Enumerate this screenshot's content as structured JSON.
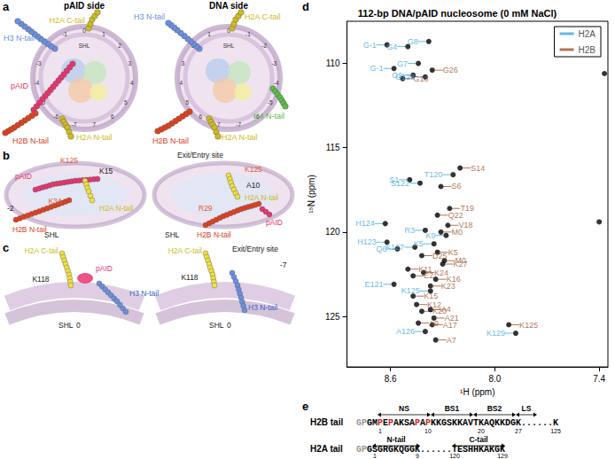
{
  "panel_letters": [
    "a",
    "b",
    "c",
    "d",
    "e"
  ],
  "a": {
    "views": [
      {
        "title": "pAID side",
        "shl_label": "SHL",
        "shl_numbers": [
          -7,
          -6,
          -5,
          -4,
          -3,
          -2,
          -1,
          0,
          1,
          2,
          3,
          4,
          5,
          6,
          7
        ],
        "tails": [
          {
            "text": "H3 N-tail",
            "color": "#6c8fe0"
          },
          {
            "text": "H2A C-tail",
            "color": "#cdbb22"
          },
          {
            "text": "pAID",
            "color": "#e8356e"
          },
          {
            "text": "H2B N-tail",
            "color": "#e0401e"
          },
          {
            "text": "H2A N-tail",
            "color": "#cdbb22"
          }
        ]
      },
      {
        "title": "DNA side",
        "shl_label": "SHL",
        "shl_numbers": [
          -7,
          -6,
          -5,
          -4,
          -3,
          -2,
          -1,
          0,
          1,
          2,
          3,
          4,
          5,
          6,
          7
        ],
        "tails": [
          {
            "text": "H3 N-tail",
            "color": "#6c8fe0"
          },
          {
            "text": "H2A C-tail",
            "color": "#cdbb22"
          },
          {
            "text": "H4 N-tail",
            "color": "#5dbb4a"
          },
          {
            "text": "H2B N-tail",
            "color": "#e0401e"
          },
          {
            "text": "H2A N-tail",
            "color": "#cdbb22"
          }
        ]
      }
    ]
  },
  "b": {
    "views": [
      {
        "labels": [
          {
            "text": "K125",
            "color": "#e06030"
          },
          {
            "text": "K15",
            "color": "#222222"
          },
          {
            "text": "pAID",
            "color": "#e8356e"
          },
          {
            "text": "K34",
            "color": "#e06030"
          },
          {
            "text": "H2A N-tail",
            "color": "#cdbb22"
          },
          {
            "text": "H2B N-tail",
            "color": "#e0401e"
          },
          {
            "number": -2,
            "color": "#222222"
          },
          {
            "text": "SHL",
            "color": "#222222"
          }
        ]
      },
      {
        "labels": [
          {
            "text": "Exit/Entry site",
            "color": "#222222"
          },
          {
            "text": "K125",
            "color": "#e06030"
          },
          {
            "text": "A10",
            "color": "#222222"
          },
          {
            "text": "H2A N-tail",
            "color": "#cdbb22"
          },
          {
            "text": "R29",
            "color": "#e06030"
          },
          {
            "text": "pAID",
            "color": "#e8356e"
          },
          {
            "text": "H2B N-tail",
            "color": "#e0401e"
          },
          {
            "text": "SHL",
            "color": "#222222"
          }
        ]
      }
    ]
  },
  "c": {
    "views": [
      {
        "labels": [
          {
            "text": "H2A C-tail",
            "color": "#cdbb22"
          },
          {
            "text": "pAID",
            "color": "#e8356e"
          },
          {
            "text": "H3 N-tail",
            "color": "#4060d0"
          },
          {
            "text": "K118",
            "color": "#222222"
          },
          {
            "text": "SHL",
            "color": "#222222"
          },
          {
            "number": 0,
            "color": "#222222"
          }
        ]
      },
      {
        "labels": [
          {
            "text": "H2A C-tail",
            "color": "#cdbb22"
          },
          {
            "text": "Exit/Entry site",
            "color": "#222222"
          },
          {
            "text": "K118",
            "color": "#222222"
          },
          {
            "text": "H3 N-tail",
            "color": "#4060d0"
          },
          {
            "text": "SHL",
            "color": "#222222"
          },
          {
            "number": 0,
            "color": "#222222"
          },
          {
            "number": -7,
            "color": "#222222"
          }
        ]
      }
    ]
  },
  "chart_data": {
    "type": "scatter",
    "title": "112-bp DNA/pAID nucleosome (0 mM NaCl)",
    "xlabel": "¹H (ppm)",
    "ylabel": "¹⁵N (ppm)",
    "xlim": [
      8.85,
      7.35
    ],
    "xticks": [
      8.6,
      {
        "value": 8,
        "label": "8.0"
      },
      7.4
    ],
    "ylim": [
      128,
      107.5
    ],
    "yticks": [
      110,
      115,
      120,
      125
    ],
    "grid": false,
    "legend": "upper right",
    "marker": "circle",
    "series": [
      {
        "name": "H2A",
        "color": "#3fa9e0",
        "labels": [
          "G-1",
          "G-1",
          "G4",
          "G8",
          "G7",
          "G2",
          "G128",
          "S1",
          "S122",
          "T120",
          "H124",
          "H123",
          "Q6",
          "R3",
          "K127",
          "K5",
          "K9",
          "E121",
          "K125",
          "A126",
          "K129"
        ],
        "x": [
          8.62,
          8.58,
          8.5,
          8.38,
          8.44,
          8.47,
          8.4,
          8.49,
          8.43,
          8.24,
          8.63,
          8.62,
          8.56,
          8.4,
          8.46,
          8.35,
          8.28,
          8.58,
          8.37,
          8.4,
          7.88
        ],
        "y": [
          108.9,
          110.3,
          109.0,
          108.7,
          110.0,
          110.7,
          110.8,
          116.9,
          117.1,
          116.6,
          119.5,
          120.6,
          121.0,
          119.9,
          120.9,
          120.7,
          120.2,
          123.1,
          123.5,
          125.9,
          126.0
        ]
      },
      {
        "name": "H2B",
        "color": "#a0522d",
        "labels": [
          "G26",
          "G13",
          "S14",
          "S6",
          "T19",
          "V18",
          "Q22",
          "M0",
          "K5",
          "D25",
          "M0",
          "K27",
          "K11",
          "E2",
          "K24",
          "K16",
          "K23",
          "K15",
          "K12",
          "K20",
          "A4",
          "A21",
          "A9",
          "A17",
          "A7",
          "K125"
        ],
        "x": [
          8.36,
          8.53,
          8.2,
          8.31,
          8.26,
          8.27,
          8.33,
          8.31,
          8.33,
          8.42,
          8.29,
          8.3,
          8.5,
          8.47,
          8.41,
          8.34,
          8.37,
          8.47,
          8.45,
          8.42,
          8.37,
          8.35,
          8.44,
          8.36,
          8.34,
          7.92
        ],
        "y": [
          110.4,
          110.9,
          116.2,
          117.3,
          118.6,
          119.6,
          119.0,
          120.0,
          121.2,
          121.4,
          121.7,
          121.9,
          122.2,
          122.6,
          122.4,
          122.8,
          123.2,
          123.8,
          124.3,
          124.7,
          124.6,
          125.1,
          125.4,
          125.5,
          126.4,
          125.5
        ]
      }
    ],
    "unassigned_peaks": [
      [
        7.37,
        110.6
      ],
      [
        7.4,
        119.4
      ]
    ]
  },
  "e": {
    "rows": [
      {
        "name": "H2B tail",
        "domains": [
          "NS",
          "BS1",
          "BS2",
          "LS"
        ],
        "numbers": [
          1,
          10,
          20,
          27,
          125
        ],
        "segments": [
          {
            "text": "GP",
            "color": "#999999"
          },
          {
            "text": "GM"
          },
          {
            "text": "P",
            "color": "#d62728"
          },
          {
            "text": "E"
          },
          {
            "text": "P",
            "color": "#d62728"
          },
          {
            "text": "AKSA"
          },
          {
            "text": "P",
            "color": "#d62728"
          },
          {
            "text": "A"
          },
          {
            "text": "P",
            "color": "#d62728"
          },
          {
            "text": "KKGSKKAVTKAQKKDGK"
          },
          {
            "text": "......K"
          }
        ]
      },
      {
        "name": "H2A tail",
        "domains": [
          "N-tail",
          "C-tail"
        ],
        "numbers": [
          1,
          9,
          120,
          129
        ],
        "segments": [
          {
            "text": "GP",
            "color": "#999999"
          },
          {
            "text": "GSGRGKQGGK"
          },
          {
            "text": "......"
          },
          {
            "text": "TESHHKAKGK"
          }
        ]
      }
    ]
  }
}
